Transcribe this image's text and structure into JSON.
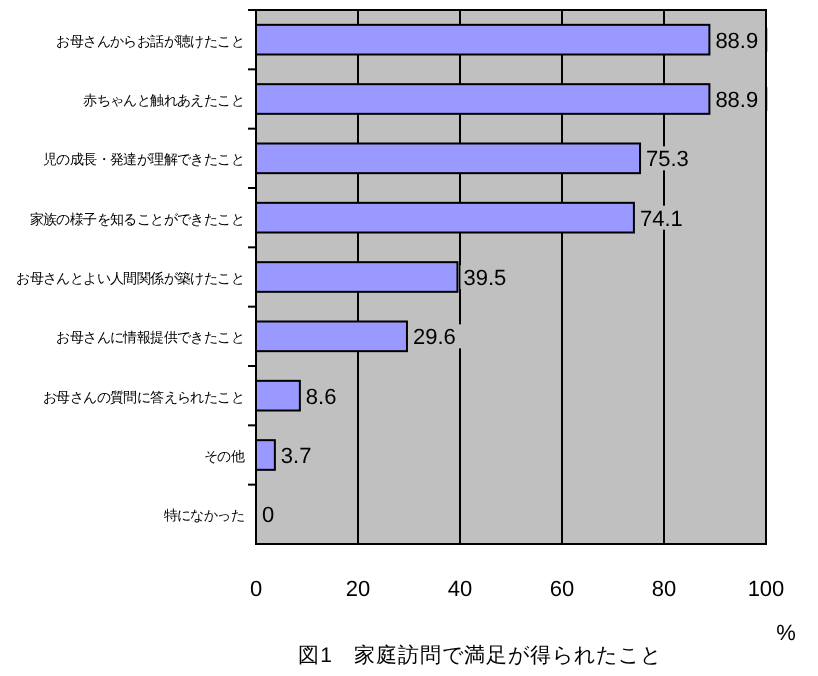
{
  "chart_data": {
    "type": "bar",
    "orientation": "horizontal",
    "title": "図1　家庭訪問で満足が得られたこと",
    "xlabel": "%",
    "categories": [
      "お母さんからお話が聴けたこと",
      "赤ちゃんと触れあえたこと",
      "児の成長・発達が理解できたこと",
      "家族の様子を知ることができたこと",
      "お母さんとよい人間関係が築けたこと",
      "お母さんに情報提供できたこと",
      "お母さんの質問に答えられたこと",
      "その他",
      "特になかった"
    ],
    "values": [
      88.9,
      88.9,
      75.3,
      74.1,
      39.5,
      29.6,
      8.6,
      3.7,
      0
    ],
    "color": "#9999ff",
    "xlim": [
      0,
      100
    ],
    "xticks": [
      0,
      20,
      40,
      60,
      80,
      100
    ],
    "grid": "x",
    "data_labels": true
  }
}
